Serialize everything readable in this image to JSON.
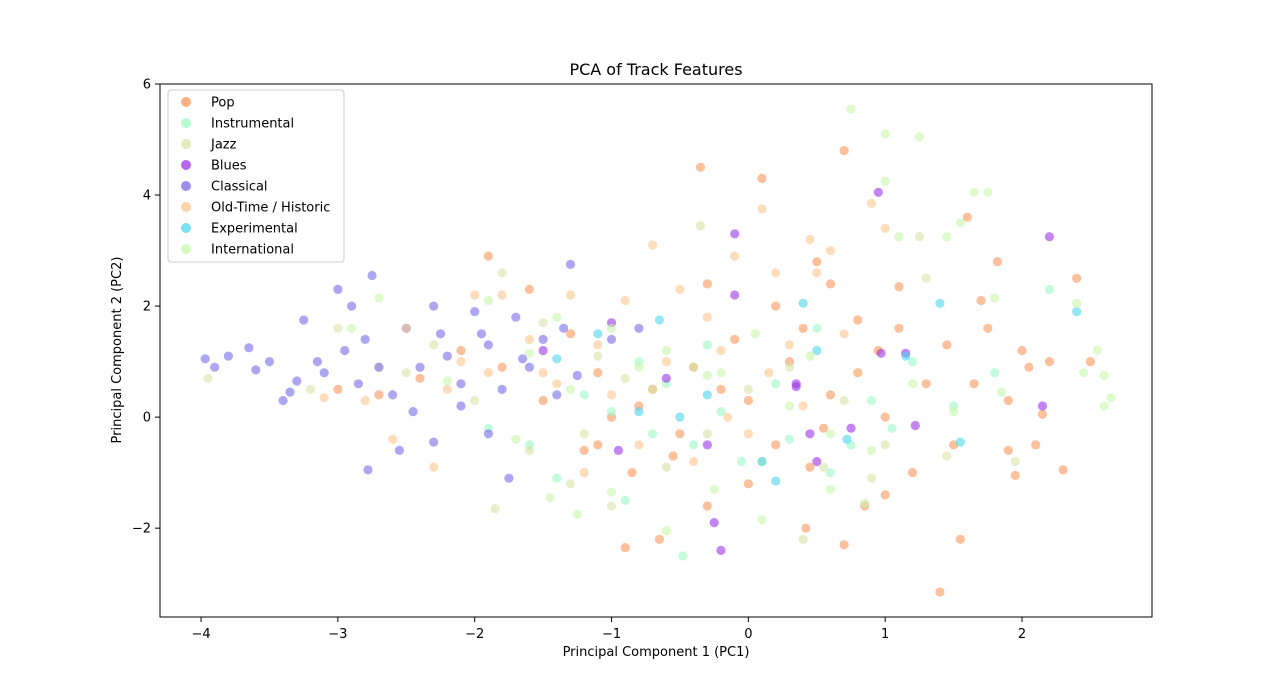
{
  "chart_data": {
    "type": "scatter",
    "title": "PCA of Track Features",
    "xlabel": "Principal Component 1 (PC1)",
    "ylabel": "Principal Component 2 (PC2)",
    "xlim": [
      -4.3,
      2.95
    ],
    "ylim": [
      -3.6,
      6.0
    ],
    "xticks": [
      -4,
      -3,
      -2,
      -1,
      0,
      1,
      2
    ],
    "yticks": [
      -2,
      0,
      2,
      4,
      6
    ],
    "xtick_labels": [
      "−4",
      "−3",
      "−2",
      "−1",
      "0",
      "1",
      "2"
    ],
    "ytick_labels": [
      "−2",
      "0",
      "2",
      "4",
      "6"
    ],
    "grid": false,
    "legend_position": "top-left",
    "series": [
      {
        "name": "Pop",
        "color": "#f9965a",
        "points": [
          [
            -0.9,
            -2.35
          ],
          [
            -0.65,
            -2.2
          ],
          [
            0.42,
            -2.0
          ],
          [
            0.7,
            -2.3
          ],
          [
            1.4,
            -3.15
          ],
          [
            1.55,
            -2.2
          ],
          [
            2.3,
            -0.95
          ],
          [
            2.15,
            0.05
          ],
          [
            2.4,
            2.5
          ],
          [
            2.0,
            1.2
          ],
          [
            1.75,
            1.6
          ],
          [
            1.7,
            2.1
          ],
          [
            1.6,
            3.6
          ],
          [
            1.82,
            2.8
          ],
          [
            1.1,
            2.35
          ],
          [
            0.95,
            1.2
          ],
          [
            0.8,
            1.75
          ],
          [
            0.6,
            0.4
          ],
          [
            0.2,
            -0.5
          ],
          [
            0.0,
            0.3
          ],
          [
            -0.2,
            0.5
          ],
          [
            -0.5,
            -0.3
          ],
          [
            -0.8,
            0.2
          ],
          [
            -1.1,
            0.8
          ],
          [
            -1.3,
            1.5
          ],
          [
            -1.6,
            2.3
          ],
          [
            -1.9,
            2.9
          ],
          [
            0.5,
            2.8
          ],
          [
            0.7,
            4.8
          ],
          [
            0.1,
            4.3
          ],
          [
            -0.35,
            4.5
          ],
          [
            0.3,
            1.0
          ],
          [
            0.55,
            -0.2
          ],
          [
            0.85,
            -1.6
          ],
          [
            1.2,
            -1.0
          ],
          [
            1.5,
            -0.5
          ],
          [
            1.9,
            -0.6
          ],
          [
            2.1,
            -0.5
          ],
          [
            1.3,
            0.6
          ],
          [
            1.0,
            0.0
          ],
          [
            0.8,
            0.8
          ],
          [
            0.4,
            1.6
          ],
          [
            -0.1,
            1.4
          ],
          [
            -0.4,
            0.9
          ],
          [
            -0.7,
            0.5
          ],
          [
            -1.0,
            0.0
          ],
          [
            -1.2,
            -0.6
          ],
          [
            -1.5,
            0.3
          ],
          [
            -1.8,
            0.9
          ],
          [
            -2.1,
            1.2
          ],
          [
            -2.4,
            0.7
          ],
          [
            -2.7,
            0.4
          ],
          [
            -3.0,
            0.5
          ],
          [
            -0.3,
            2.4
          ],
          [
            0.2,
            2.0
          ],
          [
            0.6,
            2.4
          ],
          [
            1.1,
            1.6
          ],
          [
            1.45,
            1.3
          ],
          [
            1.65,
            0.6
          ],
          [
            1.9,
            0.3
          ],
          [
            2.05,
            0.9
          ],
          [
            2.2,
            1.0
          ],
          [
            2.5,
            1.0
          ],
          [
            1.95,
            -1.05
          ],
          [
            1.0,
            -1.4
          ],
          [
            0.45,
            -0.9
          ],
          [
            0.0,
            -1.2
          ],
          [
            -0.3,
            -1.6
          ],
          [
            -0.55,
            -0.7
          ],
          [
            -0.85,
            -1.0
          ],
          [
            -1.1,
            -0.5
          ]
        ]
      },
      {
        "name": "Instrumental",
        "color": "#9cf9c6",
        "points": [
          [
            -0.48,
            -2.5
          ],
          [
            -0.9,
            -1.5
          ],
          [
            -1.4,
            -1.1
          ],
          [
            -1.0,
            0.1
          ],
          [
            -0.6,
            0.6
          ],
          [
            -0.2,
            0.1
          ],
          [
            0.3,
            -0.4
          ],
          [
            0.6,
            -1.0
          ],
          [
            0.9,
            0.3
          ],
          [
            1.2,
            1.0
          ],
          [
            0.5,
            1.6
          ],
          [
            -0.3,
            1.3
          ],
          [
            -0.8,
            1.0
          ],
          [
            -1.2,
            0.4
          ],
          [
            -1.6,
            -0.5
          ],
          [
            -1.9,
            -0.2
          ],
          [
            2.2,
            2.3
          ],
          [
            1.8,
            0.8
          ],
          [
            1.5,
            0.2
          ],
          [
            0.2,
            0.6
          ],
          [
            -0.05,
            -0.8
          ],
          [
            -0.4,
            -0.5
          ],
          [
            -0.7,
            -0.3
          ],
          [
            0.75,
            -0.5
          ],
          [
            1.05,
            -0.2
          ]
        ]
      },
      {
        "name": "Jazz",
        "color": "#d9e3a5",
        "points": [
          [
            -3.95,
            0.7
          ],
          [
            -3.2,
            0.5
          ],
          [
            -2.5,
            0.8
          ],
          [
            -2.0,
            0.3
          ],
          [
            -1.6,
            -0.6
          ],
          [
            -1.3,
            -1.2
          ],
          [
            -1.0,
            -1.6
          ],
          [
            -0.6,
            -0.9
          ],
          [
            -0.3,
            -0.3
          ],
          [
            0.1,
            -0.8
          ],
          [
            0.4,
            -2.2
          ],
          [
            0.9,
            -1.1
          ],
          [
            1.3,
            2.5
          ],
          [
            1.25,
            3.25
          ],
          [
            -0.35,
            3.45
          ],
          [
            -1.8,
            2.6
          ],
          [
            -1.5,
            1.7
          ],
          [
            -1.1,
            1.1
          ],
          [
            -0.7,
            0.5
          ],
          [
            -0.4,
            0.9
          ],
          [
            0.0,
            0.5
          ],
          [
            0.3,
            0.9
          ],
          [
            0.7,
            0.3
          ],
          [
            -2.3,
            1.3
          ],
          [
            -2.7,
            0.9
          ],
          [
            -3.0,
            1.6
          ],
          [
            -1.85,
            -1.65
          ],
          [
            -1.2,
            -0.3
          ],
          [
            -0.9,
            0.7
          ],
          [
            0.55,
            -0.9
          ],
          [
            1.0,
            -0.5
          ],
          [
            1.45,
            -0.7
          ],
          [
            1.95,
            -0.8
          ]
        ]
      },
      {
        "name": "Blues",
        "color": "#9b34e6",
        "points": [
          [
            -0.25,
            -1.9
          ],
          [
            -0.2,
            -2.4
          ],
          [
            -0.95,
            -0.6
          ],
          [
            -0.6,
            0.7
          ],
          [
            -0.3,
            -0.5
          ],
          [
            -0.1,
            3.3
          ],
          [
            -0.1,
            2.2
          ],
          [
            0.35,
            0.6
          ],
          [
            0.35,
            0.55
          ],
          [
            0.45,
            -0.3
          ],
          [
            0.5,
            -0.8
          ],
          [
            0.75,
            -0.2
          ],
          [
            0.95,
            4.05
          ],
          [
            0.97,
            1.15
          ],
          [
            1.15,
            1.15
          ],
          [
            1.22,
            -0.15
          ],
          [
            2.2,
            3.25
          ],
          [
            2.15,
            0.2
          ],
          [
            -1.0,
            1.7
          ],
          [
            -1.5,
            1.2
          ]
        ]
      },
      {
        "name": "Classical",
        "color": "#7a6be8",
        "points": [
          [
            -3.97,
            1.05
          ],
          [
            -3.9,
            0.9
          ],
          [
            -3.8,
            1.1
          ],
          [
            -3.65,
            1.25
          ],
          [
            -3.6,
            0.85
          ],
          [
            -3.5,
            1.0
          ],
          [
            -3.4,
            0.3
          ],
          [
            -3.3,
            0.65
          ],
          [
            -3.25,
            1.75
          ],
          [
            -3.1,
            0.8
          ],
          [
            -3.0,
            2.3
          ],
          [
            -2.95,
            1.2
          ],
          [
            -2.9,
            2.0
          ],
          [
            -2.85,
            0.6
          ],
          [
            -2.8,
            1.4
          ],
          [
            -2.75,
            2.55
          ],
          [
            -2.7,
            0.9
          ],
          [
            -2.6,
            0.4
          ],
          [
            -2.5,
            1.6
          ],
          [
            -2.4,
            0.9
          ],
          [
            -2.3,
            2.0
          ],
          [
            -2.2,
            1.1
          ],
          [
            -2.1,
            0.6
          ],
          [
            -2.0,
            1.9
          ],
          [
            -1.9,
            1.3
          ],
          [
            -1.8,
            0.5
          ],
          [
            -1.7,
            1.8
          ],
          [
            -1.6,
            0.9
          ],
          [
            -1.5,
            1.4
          ],
          [
            -1.4,
            0.4
          ],
          [
            -1.35,
            1.6
          ],
          [
            -1.3,
            2.75
          ],
          [
            -2.78,
            -0.95
          ],
          [
            -2.55,
            -0.6
          ],
          [
            -2.3,
            -0.45
          ],
          [
            -1.75,
            -1.1
          ],
          [
            -1.9,
            -0.3
          ],
          [
            -2.45,
            0.1
          ],
          [
            -2.1,
            0.2
          ],
          [
            -3.15,
            1.0
          ],
          [
            -3.35,
            0.45
          ],
          [
            -2.25,
            1.5
          ],
          [
            -1.95,
            1.5
          ],
          [
            -1.65,
            1.05
          ],
          [
            -1.25,
            0.75
          ],
          [
            -1.0,
            1.4
          ],
          [
            -0.8,
            1.6
          ]
        ]
      },
      {
        "name": "Old-Time / Historic",
        "color": "#fbc690",
        "points": [
          [
            -2.5,
            1.6
          ],
          [
            -2.2,
            0.5
          ],
          [
            -2.0,
            2.2
          ],
          [
            -1.8,
            2.2
          ],
          [
            -1.5,
            0.8
          ],
          [
            -1.3,
            2.2
          ],
          [
            -1.1,
            1.3
          ],
          [
            -0.9,
            2.1
          ],
          [
            -0.7,
            3.1
          ],
          [
            -0.5,
            2.3
          ],
          [
            -0.3,
            1.8
          ],
          [
            -0.1,
            2.9
          ],
          [
            0.1,
            3.75
          ],
          [
            0.3,
            1.3
          ],
          [
            0.5,
            2.6
          ],
          [
            0.7,
            1.5
          ],
          [
            0.9,
            3.85
          ],
          [
            -2.8,
            0.3
          ],
          [
            -3.1,
            0.35
          ],
          [
            -2.6,
            -0.4
          ],
          [
            -2.3,
            -0.9
          ],
          [
            -1.2,
            -1.0
          ],
          [
            -0.8,
            -0.5
          ],
          [
            -0.4,
            -0.8
          ],
          [
            0.0,
            -0.3
          ],
          [
            0.4,
            0.2
          ],
          [
            0.8,
            0.8
          ],
          [
            -1.6,
            1.4
          ],
          [
            -1.9,
            0.8
          ],
          [
            -2.1,
            1.0
          ],
          [
            -0.6,
            1.0
          ],
          [
            0.2,
            2.6
          ],
          [
            0.6,
            3.0
          ],
          [
            1.0,
            3.4
          ],
          [
            0.45,
            3.2
          ],
          [
            -0.2,
            1.2
          ],
          [
            -1.4,
            0.6
          ],
          [
            -1.0,
            0.4
          ],
          [
            -0.15,
            0.0
          ],
          [
            0.15,
            0.8
          ]
        ]
      },
      {
        "name": "Experimental",
        "color": "#4fd5ee",
        "points": [
          [
            -1.4,
            1.05
          ],
          [
            -0.8,
            0.1
          ],
          [
            -0.5,
            0.0
          ],
          [
            -0.3,
            0.4
          ],
          [
            0.1,
            -0.8
          ],
          [
            0.2,
            -1.15
          ],
          [
            0.4,
            2.05
          ],
          [
            0.5,
            1.2
          ],
          [
            0.72,
            -0.4
          ],
          [
            1.15,
            1.1
          ],
          [
            1.4,
            2.05
          ],
          [
            1.55,
            -0.45
          ],
          [
            2.4,
            1.9
          ],
          [
            -0.65,
            1.75
          ],
          [
            -1.1,
            1.5
          ]
        ]
      },
      {
        "name": "International",
        "color": "#c8f5aa",
        "points": [
          [
            0.75,
            5.55
          ],
          [
            1.0,
            5.1
          ],
          [
            1.25,
            5.05
          ],
          [
            1.0,
            4.25
          ],
          [
            1.75,
            4.05
          ],
          [
            1.65,
            4.05
          ],
          [
            1.45,
            3.25
          ],
          [
            1.1,
            3.25
          ],
          [
            1.55,
            3.5
          ],
          [
            1.8,
            2.15
          ],
          [
            2.4,
            2.05
          ],
          [
            2.55,
            1.2
          ],
          [
            2.6,
            0.75
          ],
          [
            2.65,
            0.35
          ],
          [
            2.6,
            0.2
          ],
          [
            2.45,
            0.8
          ],
          [
            -2.9,
            1.6
          ],
          [
            -2.7,
            2.15
          ],
          [
            -1.9,
            2.1
          ],
          [
            -1.4,
            1.8
          ],
          [
            -1.0,
            1.6
          ],
          [
            -0.6,
            1.2
          ],
          [
            -0.2,
            0.8
          ],
          [
            0.3,
            0.2
          ],
          [
            0.6,
            -0.3
          ],
          [
            0.9,
            -0.6
          ],
          [
            1.2,
            0.6
          ],
          [
            1.5,
            0.1
          ],
          [
            1.85,
            0.45
          ],
          [
            -1.7,
            -0.4
          ],
          [
            -1.45,
            -1.45
          ],
          [
            -1.25,
            -1.75
          ],
          [
            -1.0,
            -1.35
          ],
          [
            -0.6,
            -2.05
          ],
          [
            -0.25,
            -1.3
          ],
          [
            0.1,
            -1.85
          ],
          [
            0.6,
            -1.3
          ],
          [
            0.85,
            -1.55
          ],
          [
            -0.3,
            0.75
          ],
          [
            0.05,
            1.5
          ],
          [
            0.45,
            1.1
          ],
          [
            -0.8,
            0.9
          ],
          [
            -1.3,
            0.5
          ],
          [
            -1.6,
            1.15
          ],
          [
            -2.2,
            0.65
          ]
        ]
      }
    ]
  }
}
